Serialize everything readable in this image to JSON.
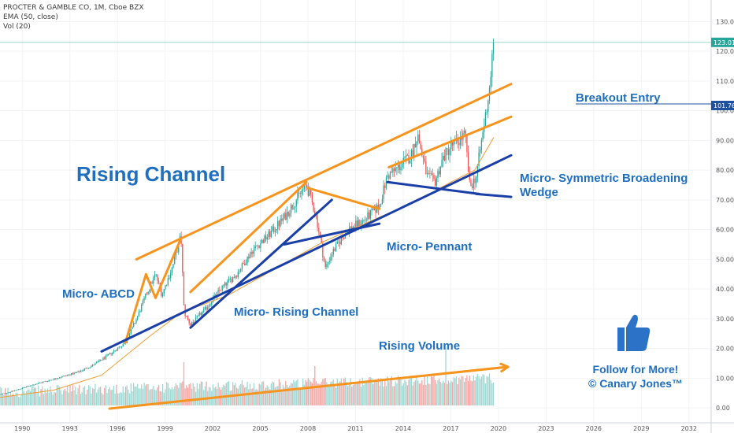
{
  "header": {
    "symbol_line": "PROCTER & GAMBLE CO, 1M, Cboe BZX",
    "ema_line": "EMA (50, close)",
    "vol_line": "Vol (20)"
  },
  "annotations": {
    "rising_channel": "Rising Channel",
    "micro_abcd": "Micro- ABCD",
    "micro_rising_channel": "Micro- Rising Channel",
    "micro_pennant": "Micro- Pennant",
    "micro_wedge_line1": "Micro- Symmetric Broadening",
    "micro_wedge_line2": "Wedge",
    "rising_volume": "Rising Volume",
    "breakout_entry": "Breakout Entry",
    "follow_line1": "Follow for More!",
    "follow_line2": "© Canary Jones™"
  },
  "colors": {
    "up": "#26a69a",
    "down": "#ef5350",
    "up_vol": "#9fd8d2",
    "down_vol": "#f6a5a3",
    "ema": "#f39a2e",
    "orange_line": "#f7941d",
    "blue_line": "#1a3fa6",
    "annotation": "#1e6fc0",
    "last_price_bg": "#26a69a",
    "breakout_bg": "#1e50a0",
    "thumb": "#2c72c7"
  },
  "icons": {
    "thumb": "thumbs-up-icon"
  },
  "chart_data": {
    "type": "candlestick",
    "title": "PROCTER & GAMBLE CO, 1M, Cboe BZX",
    "y_ticks": [
      "130.00",
      "120.00",
      "110.00",
      "100.00",
      "90.00",
      "80.00",
      "70.00",
      "60.00",
      "50.00",
      "40.00",
      "30.00",
      "20.00",
      "10.00",
      "0.00"
    ],
    "x_ticks": [
      "1990",
      "1993",
      "1996",
      "1999",
      "2002",
      "2005",
      "2008",
      "2011",
      "2014",
      "2017",
      "2020",
      "2023",
      "2026",
      "2029",
      "2032"
    ],
    "last_price": "123.01",
    "breakout_price": "101.76",
    "ylim": [
      -5,
      137
    ],
    "xlim": [
      1988.6,
      2033.4
    ],
    "series_close": [
      [
        1988.6,
        4.5
      ],
      [
        1989.5,
        5.8
      ],
      [
        1990.5,
        7.5
      ],
      [
        1991.5,
        9.0
      ],
      [
        1992.5,
        10.5
      ],
      [
        1993.5,
        12.0
      ],
      [
        1994.5,
        14.5
      ],
      [
        1995.5,
        18
      ],
      [
        1996.5,
        22
      ],
      [
        1997.2,
        30
      ],
      [
        1997.8,
        38
      ],
      [
        1998.4,
        45
      ],
      [
        1998.8,
        38
      ],
      [
        1999.5,
        48
      ],
      [
        2000.0,
        58
      ],
      [
        2000.2,
        32
      ],
      [
        2000.6,
        28
      ],
      [
        2001.5,
        33
      ],
      [
        2002.5,
        40
      ],
      [
        2003.5,
        45
      ],
      [
        2004.5,
        53
      ],
      [
        2005.5,
        58
      ],
      [
        2006.5,
        64
      ],
      [
        2007.5,
        72
      ],
      [
        2007.9,
        75
      ],
      [
        2008.5,
        65
      ],
      [
        2009.1,
        47
      ],
      [
        2009.5,
        52
      ],
      [
        2010.5,
        60
      ],
      [
        2011.5,
        63
      ],
      [
        2012.5,
        68
      ],
      [
        2013.0,
        78
      ],
      [
        2013.5,
        80
      ],
      [
        2014.5,
        85
      ],
      [
        2014.9,
        92
      ],
      [
        2015.5,
        78
      ],
      [
        2016.0,
        76
      ],
      [
        2016.5,
        84
      ],
      [
        2017.0,
        88
      ],
      [
        2017.5,
        90
      ],
      [
        2017.9,
        92
      ],
      [
        2018.2,
        74
      ],
      [
        2018.6,
        78
      ],
      [
        2019.0,
        92
      ],
      [
        2019.4,
        106
      ],
      [
        2019.7,
        123
      ]
    ],
    "ema50": [
      [
        1988.6,
        3.5
      ],
      [
        1992,
        6
      ],
      [
        1995,
        11
      ],
      [
        1998,
        24
      ],
      [
        2000,
        32
      ],
      [
        2003,
        38
      ],
      [
        2006,
        47
      ],
      [
        2009,
        56
      ],
      [
        2012,
        63
      ],
      [
        2015,
        70
      ],
      [
        2017,
        76
      ],
      [
        2018.5,
        80
      ],
      [
        2019.7,
        91
      ]
    ],
    "trendlines": [
      {
        "name": "channel-upper",
        "color": "orange",
        "pts": [
          [
            1997.2,
            50
          ],
          [
            2020.8,
            109
          ]
        ]
      },
      {
        "name": "channel-lower",
        "color": "orange",
        "pts": [
          [
            2013.1,
            81
          ],
          [
            2020.8,
            98
          ]
        ]
      },
      {
        "name": "pennant-upper",
        "color": "orange",
        "pts": [
          [
            2008.0,
            74
          ],
          [
            2012.5,
            67
          ]
        ]
      },
      {
        "name": "rising-channel-top",
        "color": "orange",
        "pts": [
          [
            2000.6,
            39
          ],
          [
            2007.9,
            76
          ]
        ]
      },
      {
        "name": "abcd-leg",
        "color": "orange",
        "pts": [
          [
            1996.5,
            22
          ],
          [
            1997.8,
            45
          ],
          [
            1998.4,
            37
          ],
          [
            2000.0,
            57
          ]
        ]
      },
      {
        "name": "main-support",
        "color": "blue",
        "pts": [
          [
            1995.0,
            19
          ],
          [
            2020.8,
            85
          ]
        ]
      },
      {
        "name": "micro-channel-bottom",
        "color": "blue",
        "pts": [
          [
            2000.6,
            27
          ],
          [
            2009.5,
            70
          ]
        ]
      },
      {
        "name": "pennant-lower",
        "color": "blue",
        "pts": [
          [
            2006.5,
            55
          ],
          [
            2012.5,
            62
          ]
        ]
      },
      {
        "name": "wedge-upper",
        "color": "blue",
        "pts": [
          [
            2013.0,
            76
          ],
          [
            2018.8,
            72
          ]
        ]
      },
      {
        "name": "wedge-lower",
        "color": "blue",
        "pts": [
          [
            2018.6,
            72
          ],
          [
            2020.8,
            71
          ]
        ]
      }
    ],
    "volume_arrow": [
      [
        1995.5,
        -1
      ],
      [
        2020.6,
        10
      ]
    ]
  }
}
